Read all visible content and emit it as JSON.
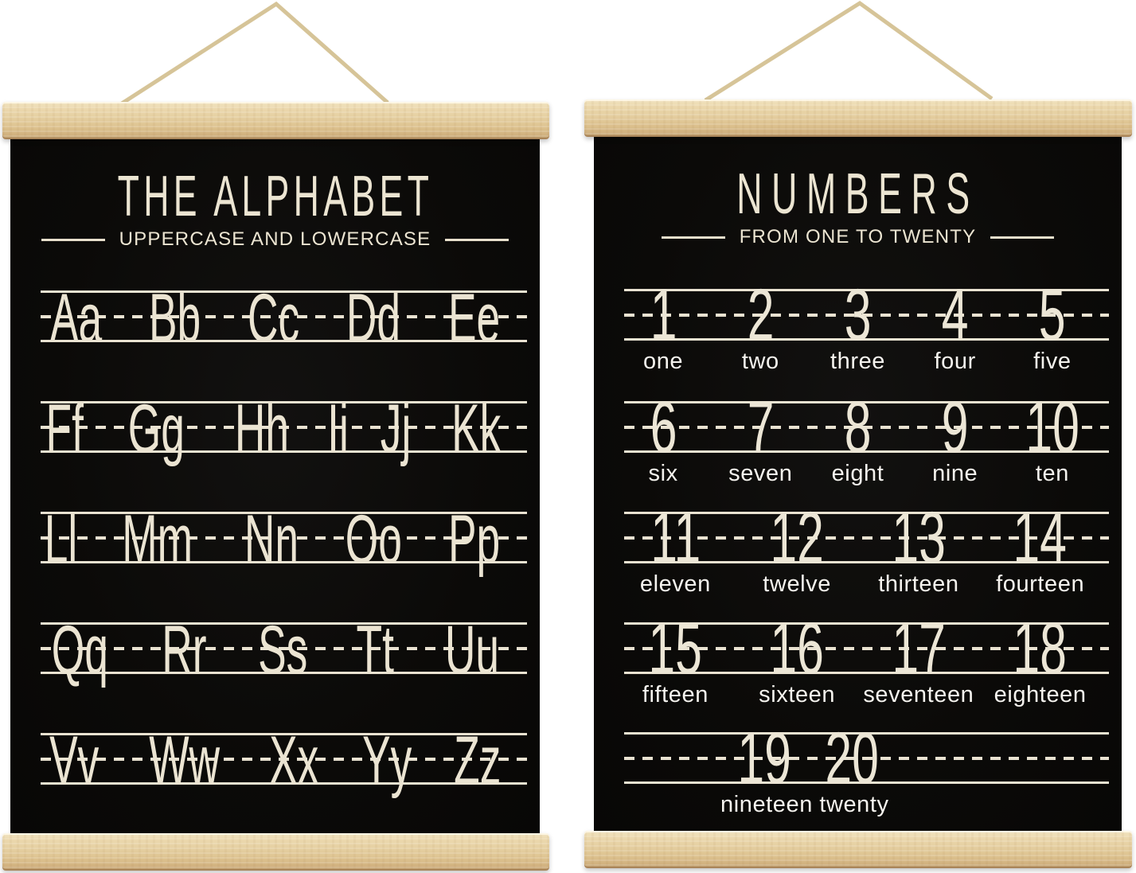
{
  "posters": [
    {
      "id": "alphabet",
      "title": "THE ALPHABET",
      "subtitle": "UPPERCASE AND LOWERCASE",
      "letter_rows": [
        [
          "Aa",
          "Bb",
          "Cc",
          "Dd",
          "Ee"
        ],
        [
          "Ff",
          "Gg",
          "Hh",
          "Ii",
          "Jj",
          "Kk"
        ],
        [
          "Ll",
          "Mm",
          "Nn",
          "Oo",
          "Pp"
        ],
        [
          "Qq",
          "Rr",
          "Ss",
          "Tt",
          "Uu"
        ],
        [
          "Vv",
          "Ww",
          "Xx",
          "Yy",
          "Zz"
        ]
      ]
    },
    {
      "id": "numbers",
      "title": "NUMBERS",
      "subtitle": "FROM ONE TO TWENTY",
      "number_rows": [
        {
          "numerals": [
            "1",
            "2",
            "3",
            "4",
            "5"
          ],
          "words": [
            "one",
            "two",
            "three",
            "four",
            "five"
          ]
        },
        {
          "numerals": [
            "6",
            "7",
            "8",
            "9",
            "10"
          ],
          "words": [
            "six",
            "seven",
            "eight",
            "nine",
            "ten"
          ]
        },
        {
          "numerals": [
            "11",
            "12",
            "13",
            "14"
          ],
          "words": [
            "eleven",
            "twelve",
            "thirteen",
            "fourteen"
          ]
        },
        {
          "numerals": [
            "15",
            "16",
            "17",
            "18"
          ],
          "words": [
            "fifteen",
            "sixteen",
            "seventeen",
            "eighteen"
          ]
        },
        {
          "numerals": [
            "19",
            "20"
          ],
          "words": [
            "nineteen",
            "twenty"
          ],
          "narrow": true
        }
      ]
    }
  ],
  "colors": {
    "page_background": "#ffffff",
    "poster_background": "#0b0a08",
    "cream_ink": "#ece5d2",
    "word_white": "#f6f4ef",
    "wood_light": "#f2e5c4",
    "wood_mid": "#e5cfa1",
    "wood_dark": "#b3905f",
    "string": "#d6c498"
  }
}
